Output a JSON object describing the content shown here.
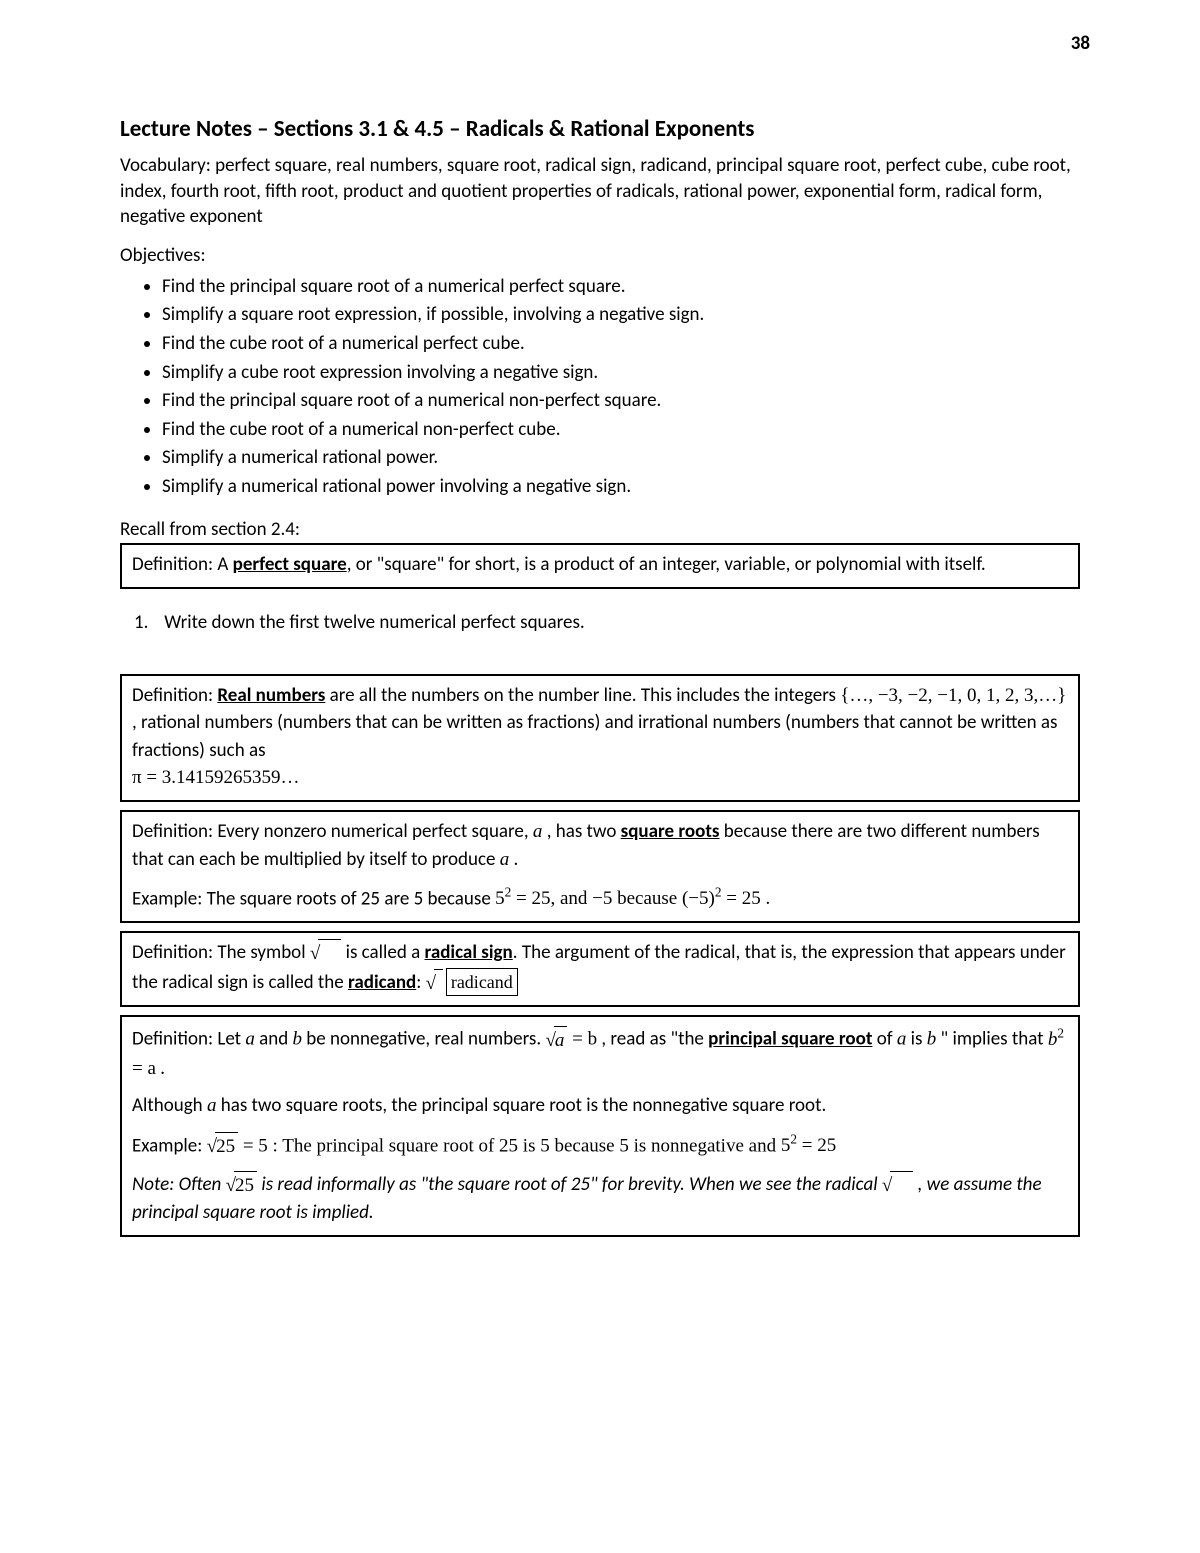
{
  "page_number": "38",
  "title": "Lecture Notes – Sections 3.1 & 4.5 – Radicals & Rational Exponents",
  "vocab_para": "Vocabulary: perfect square, real numbers, square root, radical sign, radicand, principal square root, perfect cube, cube root, index, fourth root, fifth root, product and quotient properties of radicals, rational power, exponential form, radical form, negative exponent",
  "objectives_label": "Objectives:",
  "objectives": [
    "Find the principal square root of a numerical perfect square.",
    "Simplify a square root expression, if possible, involving a negative sign.",
    "Find the cube root of a numerical perfect cube.",
    "Simplify a cube root expression involving a negative sign.",
    "Find the principal square root of a numerical non-perfect square.",
    "Find the cube root of a numerical non-perfect cube.",
    "Simplify a numerical rational power.",
    "Simplify a numerical rational power involving a negative sign."
  ],
  "recall_label": "Recall from section 2.4:",
  "def_perfect_square_pre": "Definition: A ",
  "def_perfect_square_term": "perfect square",
  "def_perfect_square_post": ", or \"square\" for short, is a product of an integer, variable, or polynomial with itself.",
  "q1_num": "1.",
  "q1_text": "Write down the first twelve numerical perfect squares.",
  "def_real_pre": "Definition: ",
  "def_real_term": "Real numbers",
  "def_real_mid1": " are all the numbers on the number line. This includes the integers ",
  "def_real_set": "{…, −3, −2, −1, 0, 1, 2, 3,…}",
  "def_real_mid2": " , rational numbers (numbers that can be written as fractions) and irrational numbers (numbers that cannot be written as fractions) such as ",
  "def_real_pi": "π = 3.14159265359…",
  "def_sqroots_part1": "Definition: Every nonzero numerical perfect square, ",
  "def_sqroots_a": "a",
  "def_sqroots_part2": " , has two ",
  "def_sqroots_term": "square roots",
  "def_sqroots_part3": " because there are two different numbers that can each be multiplied by itself to produce ",
  "def_sqroots_part4": " .",
  "ex_sqroots_pre": "Example: The square roots of 25 are 5 because  ",
  "ex_sqroots_eq1_base": "5",
  "ex_sqroots_eq1_exp": "2",
  "ex_sqroots_eq1_rest": " = 25,  and −5  because ",
  "ex_sqroots_eq2_base": "(−5)",
  "ex_sqroots_eq2_rest": " = 25 .",
  "def_radsign_pre": "Definition: The symbol ",
  "def_radsign_mid1": " is called a ",
  "def_radsign_term1": "radical sign",
  "def_radsign_mid2": ". The argument of the radical, that is, the expression that appears under the radical sign is called the ",
  "def_radsign_term2": "radicand",
  "def_radsign_colon": ":",
  "radicand_box_label": "radicand",
  "def_principal_pre": "Definition: Let ",
  "def_principal_a": "a",
  "def_principal_and": " and ",
  "def_principal_b": "b",
  "def_principal_mid1": " be nonnegative, real numbers. ",
  "def_principal_eqb": " = b",
  "def_principal_mid2": " , read as \"the ",
  "def_principal_term": "principal square root",
  "def_principal_mid3": " of ",
  "def_principal_mid4": " is ",
  "def_principal_mid5": " \" implies that ",
  "def_principal_eq_lhs": "b",
  "def_principal_eq_exp": "2",
  "def_principal_eq_rhs": " = a",
  "def_principal_dot": " .",
  "principal_although_pre": "Although ",
  "principal_although_post": " has two square roots, the principal square root is the nonnegative square root.",
  "ex_principal_pre": "Example: ",
  "ex_principal_radicand": "25",
  "ex_principal_mid": " = 5 :  The principal square root of 25 is 5 because 5 is nonnegative and  ",
  "ex_principal_eq_rest": " = 25",
  "note_pre": "Note: Often ",
  "note_mid": " is read informally as \"the square root of 25\" for brevity. When we see the radical ",
  "note_post": ", we assume the principal square root is implied.",
  "colors": {
    "text": "#000000",
    "background": "#ffffff",
    "border": "#000000"
  },
  "fontsize_body": 19,
  "fontsize_title": 23
}
